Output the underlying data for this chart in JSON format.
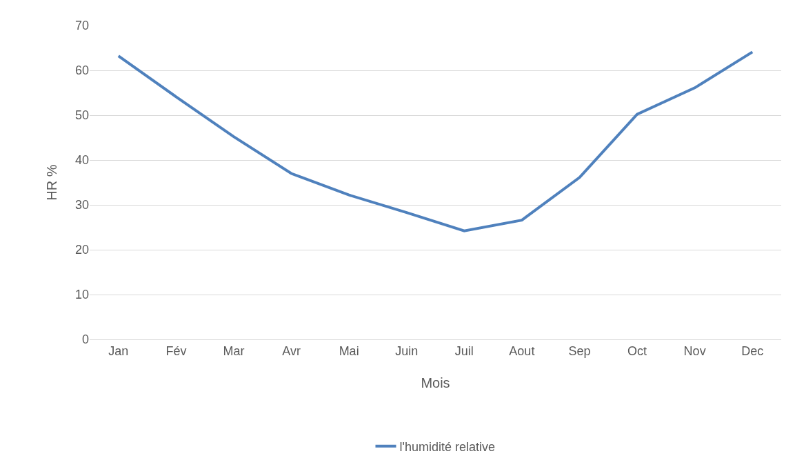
{
  "chart_data": {
    "type": "line",
    "xlabel": "Mois",
    "ylabel": "HR %",
    "categories": [
      "Jan",
      "Fév",
      "Mar",
      "Avr",
      "Mai",
      "Juin",
      "Juil",
      "Aout",
      "Sep",
      "Oct",
      "Nov",
      "Dec"
    ],
    "series": [
      {
        "name": "l'humidité relative",
        "color": "#4f81bd",
        "values": [
          63.2,
          54.1,
          45.2,
          37.0,
          32.2,
          28.3,
          24.2,
          26.6,
          36.1,
          50.2,
          56.1,
          64.1
        ]
      }
    ],
    "ylim": [
      0,
      70
    ],
    "yticks": [
      0,
      10,
      20,
      30,
      40,
      50,
      60,
      70
    ],
    "grid": "y",
    "legend": "bottom",
    "marker": "none",
    "line_style": "solid"
  }
}
